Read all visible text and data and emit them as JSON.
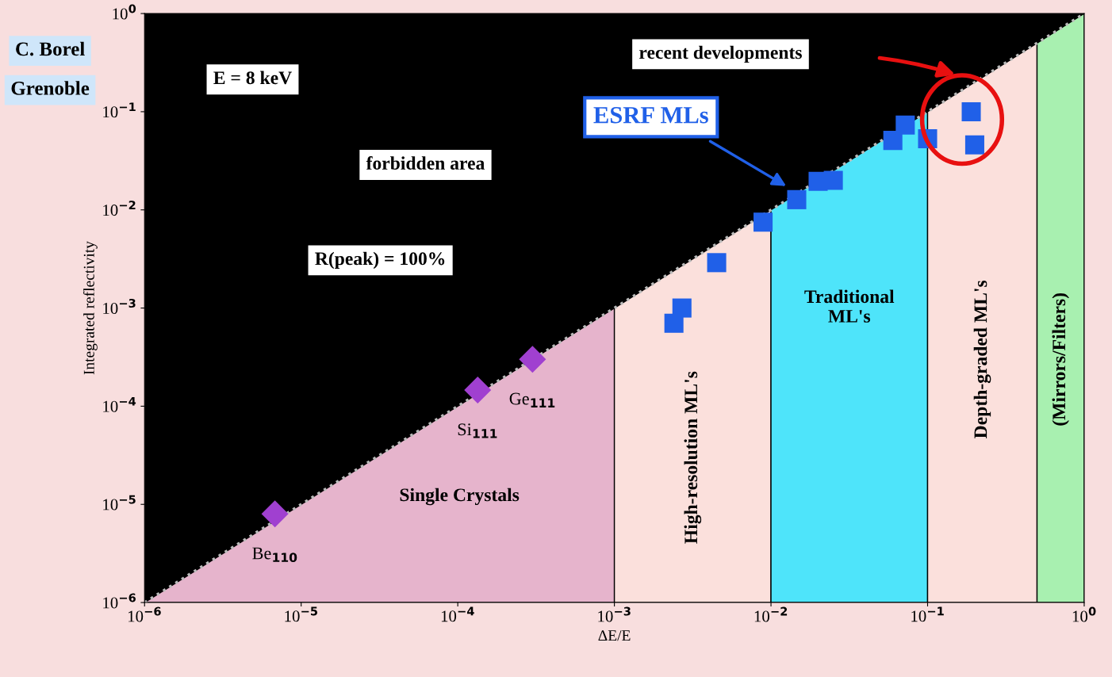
{
  "chart_data": {
    "type": "scatter",
    "xlabel": "ΔE/E",
    "ylabel": "Integrated reflectivity",
    "log": "xy",
    "xlim": [
      1e-06,
      1
    ],
    "ylim": [
      1e-06,
      1
    ],
    "xticks": [
      {
        "value": 1e-06,
        "label": "10$^{−6}$"
      },
      {
        "value": 1e-05,
        "label": "10$^{−5}$"
      },
      {
        "value": 0.0001,
        "label": "10$^{−4}$"
      },
      {
        "value": 0.001,
        "label": "10$^{−3}$"
      },
      {
        "value": 0.01,
        "label": "10$^{−2}$"
      },
      {
        "value": 0.1,
        "label": "10$^{−1}$"
      },
      {
        "value": 1,
        "label": "10$^{0}$"
      }
    ],
    "yticks": [
      {
        "value": 1e-06,
        "label": "10$^{−6}$"
      },
      {
        "value": 1e-05,
        "label": "10$^{−5}$"
      },
      {
        "value": 0.0001,
        "label": "10$^{−4}$"
      },
      {
        "value": 0.001,
        "label": "10$^{−3}$"
      },
      {
        "value": 0.01,
        "label": "10$^{−2}$"
      },
      {
        "value": 0.1,
        "label": "10$^{−1}$"
      },
      {
        "value": 1,
        "label": "10$^{0}$"
      }
    ],
    "series": [
      {
        "type": "line",
        "line_style": "dotted",
        "color": "#bbbbbb",
        "x": [
          1e-06,
          1
        ],
        "values": [
          1e-06,
          1
        ]
      },
      {
        "name": "Single Crystals",
        "type": "area",
        "color": "#e6b4cc",
        "x": [
          1e-06,
          0.001
        ],
        "values": [
          1e-06,
          0.001
        ]
      },
      {
        "name": "High-resolution ML's",
        "type": "area",
        "color": "#fbe0dc",
        "x": [
          0.001,
          0.01
        ],
        "values": [
          0.001,
          0.01
        ]
      },
      {
        "name": "Traditional\nML's",
        "type": "area",
        "color": "#4ee4fa",
        "x": [
          0.01,
          0.1
        ],
        "values": [
          0.01,
          0.1
        ]
      },
      {
        "name": "Depth-graded ML's",
        "type": "area",
        "color": "#fbe0dc",
        "x": [
          0.1,
          0.5
        ],
        "values": [
          0.1,
          0.5
        ]
      },
      {
        "name": "(Mirrors/Filters)",
        "type": "area",
        "color": "#a8f0b0",
        "x": [
          0.5,
          1
        ],
        "values": [
          0.5,
          1
        ]
      },
      {
        "marker": "diamond",
        "color": "#a040d0",
        "x": [
          6.8e-06,
          0.000134,
          0.0003
        ],
        "values": [
          8e-06,
          0.000146,
          0.0003
        ]
      },
      {
        "marker": "square",
        "color": "#2060e8",
        "x": [
          0.0024,
          0.0027,
          0.0045,
          0.0089,
          0.0146,
          0.02,
          0.025,
          0.06,
          0.072,
          0.1,
          0.19,
          0.2
        ],
        "values": [
          0.0007,
          0.001,
          0.0029,
          0.0075,
          0.0127,
          0.0195,
          0.02,
          0.051,
          0.073,
          0.053,
          0.1,
          0.046
        ]
      }
    ],
    "annotations": [
      "E = 8 keV",
      "forbidden area",
      "R(peak) = 100%",
      "recent developments",
      "ESRF MLs",
      {
        "text": "Be$_{110}$",
        "x": 6.8e-06,
        "y": 8e-06
      },
      {
        "text": "Si$_{111}$",
        "x": 0.000134,
        "y": 0.000146
      },
      {
        "text": "Ge$_{111}$",
        "x": 0.0003,
        "y": 0.0003
      },
      "C. Borel",
      "Grenoble"
    ]
  }
}
